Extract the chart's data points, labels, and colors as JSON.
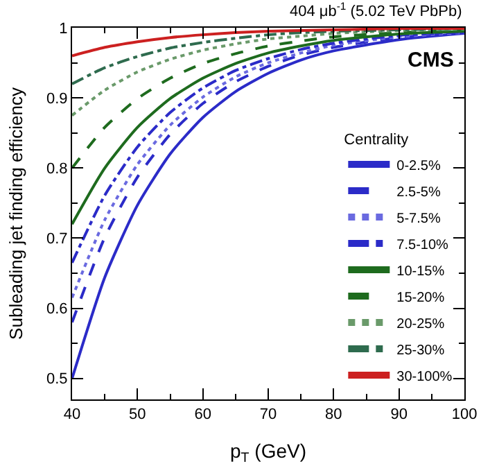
{
  "chart_data": {
    "type": "line",
    "xlabel": "p$_{T}$ (GeV)",
    "ylabel": "Subleading jet finding efficiency",
    "legend_title": "Centrality",
    "legend": "right",
    "grid": false,
    "marker": "none",
    "annotations": [
      "404 μb$^{-1}$ (5.02 TeV PbPb)",
      "CMS"
    ],
    "x": [
      40,
      45,
      50,
      55,
      60,
      65,
      70,
      75,
      80,
      90,
      100
    ],
    "xlim": [
      40,
      100
    ],
    "xticks": [
      40,
      50,
      60,
      70,
      80,
      90,
      100
    ],
    "ylim": [
      0.47,
      1
    ],
    "yticks": [
      0.5,
      0.6,
      0.7,
      0.8,
      0.9,
      1
    ],
    "series": [
      {
        "name": "0-2.5%",
        "color": "#2b2bc8",
        "line_style": "solid",
        "values": [
          0.5,
          0.644,
          0.747,
          0.82,
          0.872,
          0.909,
          0.935,
          0.954,
          0.967,
          0.983,
          0.992
        ]
      },
      {
        "name": "2.5-5%",
        "color": "#2b2bc8",
        "line_style": "dashed",
        "values": [
          0.58,
          0.701,
          0.787,
          0.848,
          0.892,
          0.923,
          0.945,
          0.961,
          0.972,
          0.986,
          0.993
        ]
      },
      {
        "name": "5-7.5%",
        "color": "#6a6ae0",
        "line_style": "dotted",
        "values": [
          0.615,
          0.726,
          0.805,
          0.861,
          0.901,
          0.93,
          0.95,
          0.964,
          0.975,
          0.987,
          0.993
        ]
      },
      {
        "name": "7.5-10%",
        "color": "#2b2bc8",
        "line_style": "dashdot",
        "values": [
          0.665,
          0.761,
          0.83,
          0.879,
          0.914,
          0.939,
          0.956,
          0.969,
          0.978,
          0.989,
          0.994
        ]
      },
      {
        "name": "10-15%",
        "color": "#1e6b1e",
        "line_style": "solid",
        "values": [
          0.72,
          0.8,
          0.858,
          0.899,
          0.928,
          0.949,
          0.964,
          0.974,
          0.982,
          0.991,
          0.995
        ]
      },
      {
        "name": "15-20%",
        "color": "#1e6b1e",
        "line_style": "dashed",
        "values": [
          0.8,
          0.858,
          0.899,
          0.928,
          0.949,
          0.963,
          0.974,
          0.981,
          0.987,
          0.993,
          0.997
        ]
      },
      {
        "name": "20-25%",
        "color": "#6a9a6a",
        "line_style": "dotted",
        "values": [
          0.875,
          0.911,
          0.937,
          0.955,
          0.968,
          0.977,
          0.984,
          0.988,
          0.992,
          0.996,
          0.998
        ]
      },
      {
        "name": "25-30%",
        "color": "#2e6b4e",
        "line_style": "dashdot",
        "values": [
          0.92,
          0.943,
          0.959,
          0.971,
          0.979,
          0.985,
          0.99,
          0.993,
          0.995,
          0.997,
          0.999
        ]
      },
      {
        "name": "30-100%",
        "color": "#cc2020",
        "line_style": "solid",
        "values": [
          0.96,
          0.972,
          0.98,
          0.986,
          0.99,
          0.993,
          0.995,
          0.996,
          0.997,
          0.999,
          0.999
        ]
      }
    ]
  }
}
